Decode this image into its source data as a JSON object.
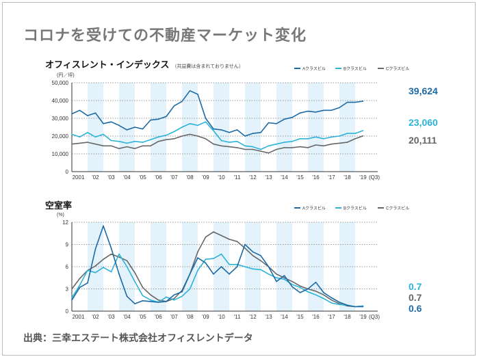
{
  "title": "コロナを受けての不動産マーケット変化",
  "source": "出典：三幸エステート株式会社オフィスレントデータ",
  "colors": {
    "A": "#1b69a5",
    "B": "#2bb3d8",
    "C": "#666666",
    "band": "#e4f2fb"
  },
  "chart_data": [
    {
      "type": "line",
      "title": "オフィスレント・インデックス",
      "note": "（共益費は含まれておりません）",
      "unit": "(円／坪)",
      "ylim": [
        0,
        50000
      ],
      "yticks": [
        "0",
        "10,000",
        "20,000",
        "30,000",
        "40,000",
        "50,000"
      ],
      "ytick_values": [
        0,
        10000,
        20000,
        30000,
        40000,
        50000
      ],
      "xtick_labels": [
        "2001",
        "'02",
        "'03",
        "'04",
        "'05",
        "'06",
        "'07",
        "'08",
        "'09",
        "'10",
        "'11",
        "'12",
        "'13",
        "'14",
        "'15",
        "'16",
        "'17",
        "'18",
        "'19",
        "(Q3)"
      ],
      "grid": "dotted horizontal",
      "legend_position": "top-right",
      "x": [
        2001.0,
        2001.5,
        2002.0,
        2002.5,
        2003.0,
        2003.5,
        2004.0,
        2004.5,
        2005.0,
        2005.5,
        2006.0,
        2006.5,
        2007.0,
        2007.5,
        2008.0,
        2008.5,
        2009.0,
        2009.5,
        2010.0,
        2010.5,
        2011.0,
        2011.5,
        2012.0,
        2012.5,
        2013.0,
        2013.5,
        2014.0,
        2014.5,
        2015.0,
        2015.5,
        2016.0,
        2016.5,
        2017.0,
        2017.5,
        2018.0,
        2018.5,
        2019.0,
        2019.5
      ],
      "series": [
        {
          "name": "Aクラスビル",
          "key": "A",
          "end_label": "39,624",
          "values": [
            32500,
            34500,
            31500,
            33000,
            27000,
            28000,
            26000,
            23500,
            25000,
            24000,
            29000,
            29500,
            31000,
            37000,
            39500,
            45500,
            43500,
            30000,
            24000,
            23500,
            22000,
            23500,
            20000,
            21500,
            22000,
            27500,
            27000,
            29500,
            30500,
            33000,
            34000,
            33500,
            34500,
            34500,
            36000,
            39000,
            39000,
            39624
          ]
        },
        {
          "name": "Bクラスビル",
          "key": "B",
          "end_label": "23,060",
          "values": [
            21000,
            19500,
            22000,
            19500,
            21000,
            17500,
            17000,
            16000,
            17000,
            16500,
            18000,
            19500,
            20500,
            22500,
            25000,
            27000,
            26000,
            28000,
            23000,
            17500,
            16500,
            17000,
            14500,
            14000,
            12500,
            14500,
            15500,
            16500,
            17000,
            18500,
            18500,
            19500,
            18500,
            19500,
            20000,
            21500,
            21500,
            23060
          ]
        },
        {
          "name": "Cクラスビル",
          "key": "C",
          "end_label": "20,111",
          "values": [
            15500,
            16000,
            16500,
            15500,
            14500,
            14500,
            13000,
            14000,
            13000,
            14500,
            14500,
            17000,
            18000,
            18500,
            20000,
            21000,
            20000,
            18500,
            15500,
            14500,
            14000,
            13500,
            12500,
            12500,
            11500,
            10500,
            12500,
            13500,
            13500,
            14000,
            13500,
            15000,
            14500,
            15500,
            16000,
            16500,
            18500,
            20111
          ]
        }
      ]
    },
    {
      "type": "line",
      "title": "空室率",
      "unit": "(%)",
      "ylim": [
        0,
        12
      ],
      "yticks": [
        "0",
        "3",
        "6",
        "9",
        "12"
      ],
      "ytick_values": [
        0,
        3,
        6,
        9,
        12
      ],
      "xtick_labels": [
        "2001",
        "'02",
        "'03",
        "'04",
        "'05",
        "'06",
        "'07",
        "'08",
        "'09",
        "'10",
        "'11",
        "'12",
        "'13",
        "'14",
        "'15",
        "'16",
        "'17",
        "'18",
        "'19",
        "(Q3)"
      ],
      "grid": "dotted horizontal",
      "legend_position": "top-right",
      "x": [
        2001.0,
        2001.5,
        2002.0,
        2002.5,
        2003.0,
        2003.5,
        2004.0,
        2004.5,
        2005.0,
        2005.5,
        2006.0,
        2006.5,
        2007.0,
        2007.5,
        2008.0,
        2008.5,
        2009.0,
        2009.5,
        2010.0,
        2010.5,
        2011.0,
        2011.5,
        2012.0,
        2012.5,
        2013.0,
        2013.5,
        2014.0,
        2014.5,
        2015.0,
        2015.5,
        2016.0,
        2016.5,
        2017.0,
        2017.5,
        2018.0,
        2018.5,
        2019.0,
        2019.5
      ],
      "series": [
        {
          "name": "Aクラスビル",
          "key": "A",
          "end_label": "0.6",
          "values": [
            1.5,
            3.2,
            3.8,
            8.4,
            11.5,
            8.5,
            5.0,
            2.0,
            1.0,
            1.4,
            1.3,
            1.2,
            1.3,
            2.2,
            2.6,
            5.0,
            7.2,
            6.5,
            5.0,
            6.0,
            5.0,
            6.0,
            9.0,
            8.0,
            7.5,
            6.0,
            4.0,
            4.8,
            3.3,
            2.5,
            3.0,
            3.9,
            2.5,
            1.8,
            1.2,
            0.8,
            0.6,
            0.6
          ]
        },
        {
          "name": "Bクラスビル",
          "key": "B",
          "end_label": "0.7",
          "values": [
            1.8,
            3.5,
            5.5,
            5.2,
            5.9,
            5.3,
            7.7,
            6.0,
            4.0,
            2.1,
            1.5,
            1.2,
            1.9,
            1.5,
            2.0,
            3.0,
            5.5,
            7.0,
            7.1,
            7.7,
            6.3,
            6.3,
            6.0,
            5.7,
            5.6,
            5.0,
            4.5,
            4.3,
            3.6,
            3.2,
            2.6,
            2.2,
            1.7,
            1.1,
            0.9,
            0.8,
            0.6,
            0.7
          ]
        },
        {
          "name": "Cクラスビル",
          "key": "C",
          "end_label": "0.7",
          "values": [
            3.0,
            4.4,
            5.5,
            6.1,
            7.0,
            7.7,
            7.3,
            6.8,
            5.2,
            3.2,
            2.2,
            1.5,
            1.3,
            1.7,
            2.8,
            5.0,
            8.0,
            10.0,
            10.7,
            10.2,
            9.7,
            9.4,
            8.5,
            7.5,
            6.8,
            6.0,
            5.0,
            4.5,
            4.0,
            3.4,
            3.0,
            2.7,
            2.2,
            1.5,
            1.0,
            0.7,
            0.6,
            0.7
          ]
        }
      ]
    }
  ]
}
